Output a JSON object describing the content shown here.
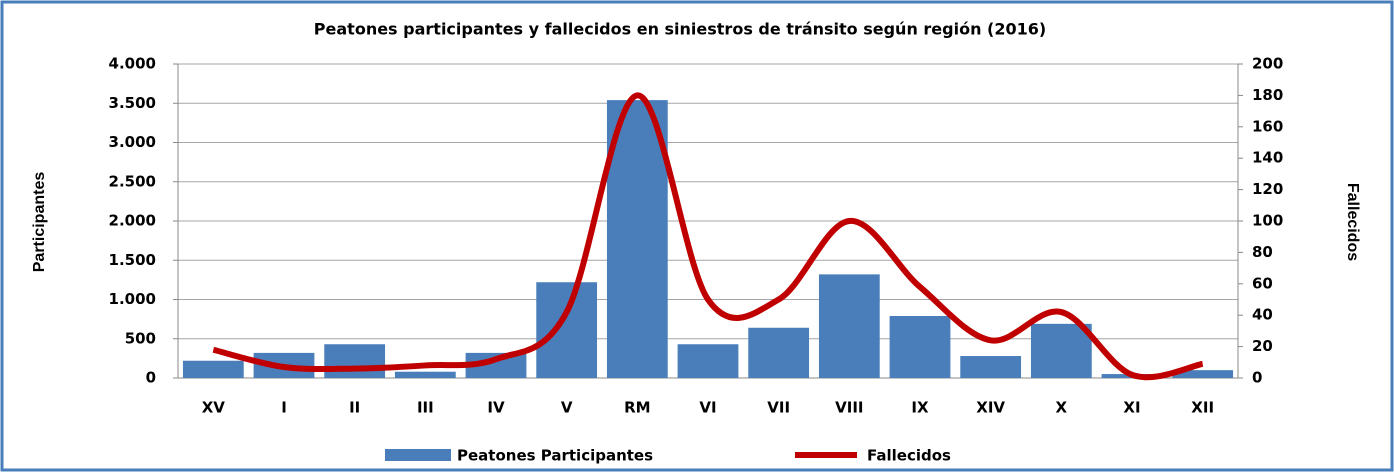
{
  "chart_data": {
    "type": "bar",
    "title": "Peatones participantes y fallecidos en siniestros de tránsito según región (2016)",
    "y_label": "Participantes",
    "y2_label": "Fallecidos",
    "categories": [
      "XV",
      "I",
      "II",
      "III",
      "IV",
      "V",
      "RM",
      "VI",
      "VII",
      "VIII",
      "IX",
      "XIV",
      "X",
      "XI",
      "XII"
    ],
    "series": [
      {
        "name": "Peatones Participantes",
        "color": "#4a7ebb",
        "type": "bar",
        "values": [
          220,
          320,
          430,
          80,
          320,
          1220,
          3540,
          430,
          640,
          1320,
          790,
          280,
          690,
          50,
          100
        ]
      },
      {
        "name": "Fallecidos",
        "color": "#c00000",
        "type": "line",
        "axis": "y2",
        "values": [
          18,
          7,
          6,
          8,
          12,
          42,
          180,
          50,
          50,
          100,
          58,
          24,
          42,
          2,
          9
        ]
      }
    ],
    "ylim": [
      0,
      4000
    ],
    "yticks": [
      0,
      500,
      {
        "value": 1000,
        "label": "1.000"
      },
      {
        "value": 1500,
        "label": "1.500"
      },
      {
        "value": 2000,
        "label": "2.000"
      },
      {
        "value": 2500,
        "label": "2.500"
      },
      {
        "value": 3000,
        "label": "3.000"
      },
      {
        "value": 3500,
        "label": "3.500"
      },
      {
        "value": 4000,
        "label": "4.000"
      }
    ],
    "y2lim": [
      0,
      200
    ],
    "y2ticks": [
      0,
      20,
      40,
      60,
      80,
      100,
      120,
      140,
      160,
      180,
      200
    ],
    "grid": true,
    "legend": "bottom"
  }
}
